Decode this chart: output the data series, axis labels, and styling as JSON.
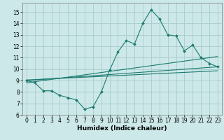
{
  "title": "",
  "xlabel": "Humidex (Indice chaleur)",
  "bg_color": "#cce8e8",
  "grid_color": "#aacccc",
  "line_color": "#1a7a6e",
  "xlim": [
    -0.5,
    23.5
  ],
  "ylim": [
    6,
    15.8
  ],
  "xticks": [
    0,
    1,
    2,
    3,
    4,
    5,
    6,
    7,
    8,
    9,
    10,
    11,
    12,
    13,
    14,
    15,
    16,
    17,
    18,
    19,
    20,
    21,
    22,
    23
  ],
  "yticks": [
    6,
    7,
    8,
    9,
    10,
    11,
    12,
    13,
    14,
    15
  ],
  "main_x": [
    0,
    1,
    2,
    3,
    4,
    5,
    6,
    7,
    8,
    9,
    10,
    11,
    12,
    13,
    14,
    15,
    16,
    17,
    18,
    19,
    20,
    21,
    22,
    23
  ],
  "main_y": [
    9.0,
    8.8,
    8.1,
    8.1,
    7.7,
    7.5,
    7.3,
    6.5,
    6.7,
    8.0,
    9.9,
    11.5,
    12.5,
    12.2,
    14.0,
    15.2,
    14.4,
    13.0,
    12.9,
    11.6,
    12.1,
    11.0,
    10.5,
    10.2
  ],
  "line1_x": [
    0,
    23
  ],
  "line1_y": [
    9.0,
    10.2
  ],
  "line2_x": [
    0,
    23
  ],
  "line2_y": [
    8.8,
    11.1
  ],
  "line3_x": [
    0,
    23
  ],
  "line3_y": [
    9.05,
    9.85
  ],
  "tick_fontsize": 5.5,
  "xlabel_fontsize": 6.5
}
